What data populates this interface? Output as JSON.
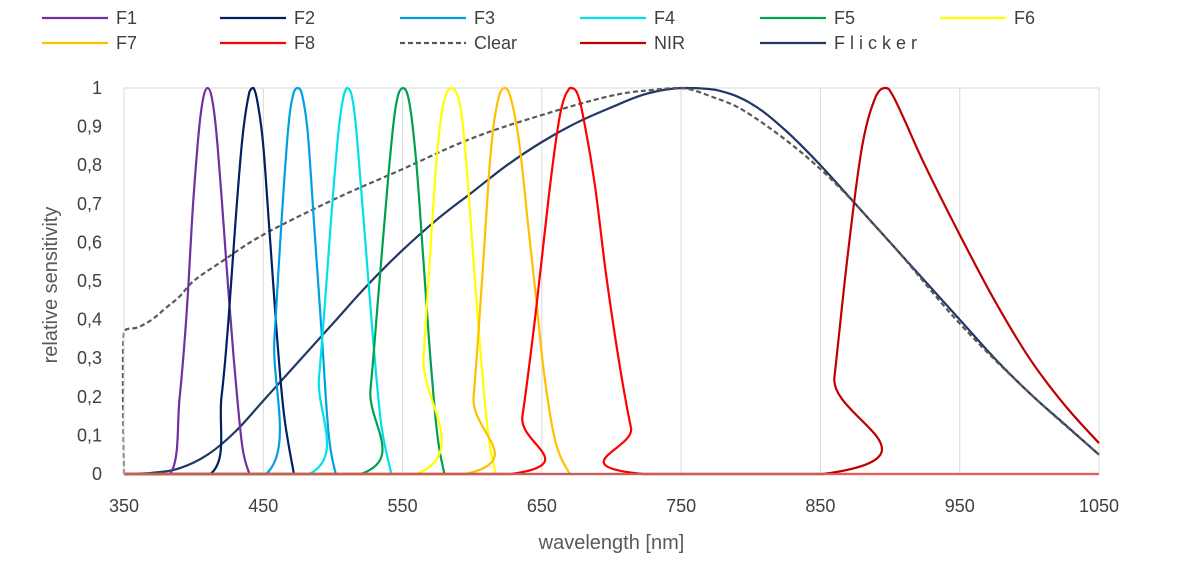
{
  "chart_data": {
    "type": "line",
    "xlabel": "wavelength [nm]",
    "ylabel": "relative sensitivity",
    "xlim": [
      350,
      1050
    ],
    "ylim": [
      0,
      1
    ],
    "x_ticks": [
      "350",
      "450",
      "550",
      "650",
      "750",
      "850",
      "950",
      "1050"
    ],
    "y_ticks": [
      "0",
      "0,1",
      "0,2",
      "0,3",
      "0,4",
      "0,5",
      "0,6",
      "0,7",
      "0,8",
      "0,9",
      "1"
    ],
    "grid": "vertical",
    "legend_position": "top",
    "series": [
      {
        "name": "F1",
        "color": "#7030A0",
        "dash": false,
        "x": [
          350,
          383,
          390,
          395,
          400,
          405,
          410,
          415,
          420,
          425,
          430,
          435,
          440
        ],
        "y": [
          0,
          0,
          0.2,
          0.42,
          0.72,
          0.93,
          1.0,
          0.93,
          0.72,
          0.47,
          0.25,
          0.07,
          0
        ]
      },
      {
        "name": "F2",
        "color": "#002060",
        "dash": false,
        "x": [
          350,
          412,
          420,
          425,
          430,
          435,
          440,
          443,
          446,
          450,
          455,
          460,
          465,
          472
        ],
        "y": [
          0,
          0,
          0.2,
          0.4,
          0.65,
          0.87,
          0.99,
          1.0,
          0.96,
          0.85,
          0.6,
          0.35,
          0.15,
          0
        ]
      },
      {
        "name": "F3",
        "color": "#00A0E0",
        "dash": false,
        "x": [
          350,
          452,
          458,
          463,
          468,
          472,
          475,
          478,
          482,
          487,
          492,
          497,
          502
        ],
        "y": [
          0,
          0,
          0.35,
          0.65,
          0.9,
          0.99,
          1.0,
          0.98,
          0.88,
          0.62,
          0.36,
          0.1,
          0
        ]
      },
      {
        "name": "F4",
        "color": "#00E0E8",
        "dash": false,
        "x": [
          350,
          483,
          490,
          495,
          500,
          505,
          510,
          515,
          520,
          525,
          530,
          535,
          542
        ],
        "y": [
          0,
          0,
          0.25,
          0.48,
          0.72,
          0.92,
          1.0,
          0.95,
          0.75,
          0.52,
          0.3,
          0.12,
          0
        ]
      },
      {
        "name": "F5",
        "color": "#00A050",
        "dash": false,
        "x": [
          350,
          520,
          527,
          533,
          540,
          545,
          550,
          555,
          560,
          565,
          570,
          575,
          580
        ],
        "y": [
          0,
          0,
          0.22,
          0.48,
          0.78,
          0.95,
          1.0,
          0.96,
          0.8,
          0.55,
          0.3,
          0.1,
          0
        ]
      },
      {
        "name": "F6",
        "color": "#FFFF00",
        "dash": false,
        "x": [
          350,
          560,
          565,
          570,
          575,
          580,
          586,
          592,
          597,
          602,
          607,
          612,
          617
        ],
        "y": [
          0,
          0,
          0.3,
          0.58,
          0.84,
          0.97,
          1.0,
          0.94,
          0.75,
          0.5,
          0.27,
          0.09,
          0
        ]
      },
      {
        "name": "F7",
        "color": "#FFC000",
        "dash": false,
        "x": [
          350,
          595,
          601,
          607,
          613,
          618,
          623,
          628,
          634,
          640,
          646,
          652,
          660,
          670
        ],
        "y": [
          0,
          0,
          0.2,
          0.5,
          0.82,
          0.96,
          1.0,
          0.97,
          0.85,
          0.65,
          0.45,
          0.25,
          0.08,
          0
        ]
      },
      {
        "name": "F8",
        "color": "#FF0000",
        "dash": false,
        "x": [
          350,
          628,
          636,
          645,
          655,
          663,
          670,
          675,
          680,
          688,
          696,
          705,
          714,
          723,
          1050
        ],
        "y": [
          0,
          0,
          0.15,
          0.4,
          0.72,
          0.93,
          1.0,
          0.99,
          0.92,
          0.75,
          0.52,
          0.3,
          0.12,
          0,
          0
        ]
      },
      {
        "name": "Clear",
        "color": "#595959",
        "dash": true,
        "x": [
          350,
          350,
          360,
          370,
          380,
          390,
          400,
          420,
          450,
          500,
          550,
          600,
          650,
          700,
          730,
          750,
          770,
          800,
          850,
          900,
          950,
          1000,
          1050
        ],
        "y": [
          0,
          0.37,
          0.38,
          0.4,
          0.43,
          0.46,
          0.5,
          0.55,
          0.62,
          0.71,
          0.79,
          0.87,
          0.93,
          0.98,
          0.995,
          1.0,
          0.98,
          0.93,
          0.79,
          0.6,
          0.39,
          0.21,
          0.05
        ]
      },
      {
        "name": "NIR",
        "color": "#C00000",
        "dash": false,
        "x": [
          350,
          852,
          860,
          870,
          880,
          890,
          897,
          902,
          910,
          925,
          950,
          975,
          1000,
          1025,
          1050
        ],
        "y": [
          0,
          0,
          0.25,
          0.58,
          0.85,
          0.98,
          1.0,
          0.98,
          0.92,
          0.8,
          0.62,
          0.45,
          0.3,
          0.18,
          0.08
        ]
      },
      {
        "name": "F l i c k e r",
        "color": "#1F3864",
        "dash": false,
        "x": [
          350,
          370,
          390,
          410,
          430,
          450,
          475,
          500,
          525,
          550,
          575,
          600,
          625,
          650,
          675,
          700,
          725,
          750,
          775,
          800,
          825,
          850,
          875,
          900,
          925,
          950,
          975,
          1000,
          1025,
          1050
        ],
        "y": [
          0,
          0.003,
          0.015,
          0.05,
          0.11,
          0.19,
          0.29,
          0.39,
          0.49,
          0.58,
          0.66,
          0.73,
          0.8,
          0.86,
          0.91,
          0.95,
          0.985,
          1.0,
          0.995,
          0.96,
          0.89,
          0.8,
          0.7,
          0.6,
          0.5,
          0.4,
          0.3,
          0.21,
          0.13,
          0.05
        ]
      }
    ]
  }
}
